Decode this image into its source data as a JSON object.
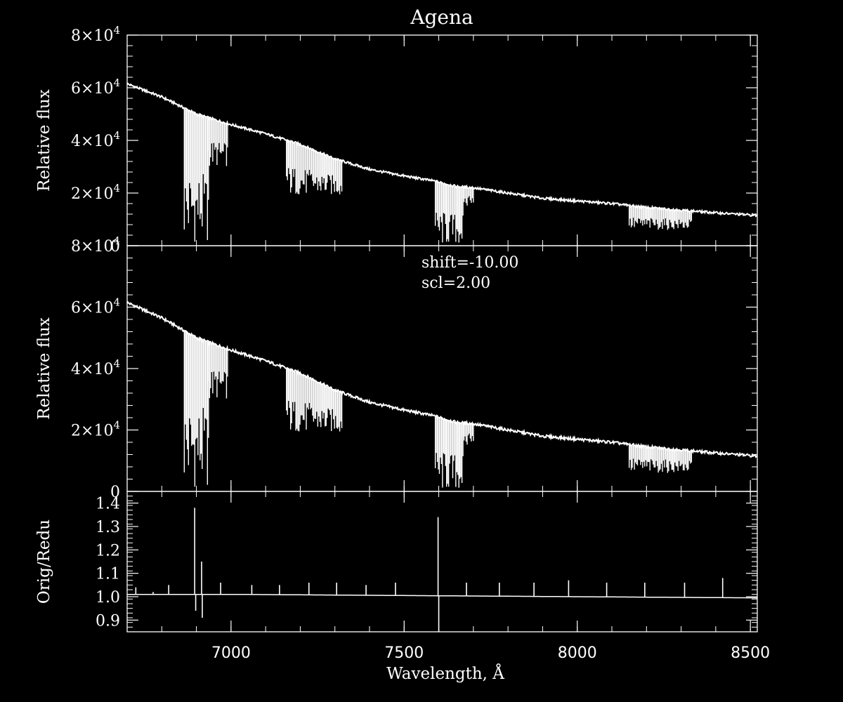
{
  "chart_data": {
    "type": "line",
    "title": "Agena",
    "xlabel": "Wavelength, Å",
    "xlim": [
      6700,
      8520
    ],
    "x_ticks": [
      7000,
      7500,
      8000,
      8500
    ],
    "x_tick_labels": [
      "7000",
      "7500",
      "8000",
      "8500"
    ],
    "colors": {
      "background": "#000000",
      "foreground": "#ffffff"
    },
    "panels": [
      {
        "id": "top",
        "ylabel": "Relative flux",
        "ylim": [
          0,
          80000
        ],
        "y_ticks": [
          0,
          20000,
          40000,
          60000,
          80000
        ],
        "y_tick_labels": [
          {
            "base": "0",
            "exp": ""
          },
          {
            "base": "2×10",
            "exp": "4"
          },
          {
            "base": "4×10",
            "exp": "4"
          },
          {
            "base": "6×10",
            "exp": "4"
          },
          {
            "base": "8×10",
            "exp": "4"
          }
        ],
        "continuum": {
          "x": [
            6700,
            6760,
            6800,
            6870,
            6900,
            7000,
            7100,
            7200,
            7300,
            7400,
            7500,
            7590,
            7650,
            7700,
            7800,
            7900,
            8000,
            8100,
            8200,
            8300,
            8400,
            8520
          ],
          "y": [
            61500,
            58500,
            56500,
            52000,
            50000,
            46000,
            42500,
            38500,
            33000,
            29000,
            26500,
            24500,
            22500,
            22000,
            20000,
            18000,
            17000,
            16000,
            14500,
            13500,
            12500,
            11500
          ]
        },
        "absorption_bands": [
          {
            "x0": 6865,
            "x1": 6935,
            "y_min": 1000
          },
          {
            "x0": 6935,
            "x1": 6990,
            "y_min": 30000
          },
          {
            "x0": 7160,
            "x1": 7320,
            "y_min": 19000
          },
          {
            "x0": 7590,
            "x1": 7670,
            "y_min": 0
          },
          {
            "x0": 7670,
            "x1": 7700,
            "y_min": 15000
          },
          {
            "x0": 8150,
            "x1": 8330,
            "y_min": 6000
          }
        ]
      },
      {
        "id": "middle",
        "ylabel": "Relative flux",
        "ylim": [
          0,
          80000
        ],
        "y_ticks": [
          0,
          20000,
          40000,
          60000,
          80000
        ],
        "y_tick_labels": [
          {
            "base": "0",
            "exp": ""
          },
          {
            "base": "2×10",
            "exp": "4"
          },
          {
            "base": "4×10",
            "exp": "4"
          },
          {
            "base": "6×10",
            "exp": "4"
          },
          {
            "base": "8×10",
            "exp": "4"
          }
        ],
        "annotations": [
          "shift=-10.00",
          "scl=2.00"
        ],
        "continuum": {
          "x": [
            6700,
            6760,
            6800,
            6870,
            6900,
            7000,
            7100,
            7200,
            7300,
            7400,
            7500,
            7590,
            7650,
            7700,
            7800,
            7900,
            8000,
            8100,
            8200,
            8300,
            8400,
            8520
          ],
          "y": [
            61500,
            58500,
            56500,
            52000,
            50000,
            46000,
            42500,
            38500,
            33000,
            29000,
            26500,
            24500,
            22500,
            22000,
            20000,
            18000,
            17000,
            16000,
            14500,
            13500,
            12500,
            11500
          ]
        },
        "absorption_bands": [
          {
            "x0": 6865,
            "x1": 6935,
            "y_min": 1000
          },
          {
            "x0": 6935,
            "x1": 6990,
            "y_min": 30000
          },
          {
            "x0": 7160,
            "x1": 7320,
            "y_min": 19000
          },
          {
            "x0": 7590,
            "x1": 7670,
            "y_min": 0
          },
          {
            "x0": 7670,
            "x1": 7700,
            "y_min": 15000
          },
          {
            "x0": 8150,
            "x1": 8330,
            "y_min": 6000
          }
        ]
      },
      {
        "id": "bottom",
        "ylabel": "Orig/Redu",
        "ylim": [
          0.85,
          1.45
        ],
        "y_ticks": [
          0.9,
          1.0,
          1.1,
          1.2,
          1.3,
          1.4
        ],
        "y_tick_labels": [
          {
            "base": "0.9",
            "exp": ""
          },
          {
            "base": "1.0",
            "exp": ""
          },
          {
            "base": "1.1",
            "exp": ""
          },
          {
            "base": "1.2",
            "exp": ""
          },
          {
            "base": "1.3",
            "exp": ""
          },
          {
            "base": "1.4",
            "exp": ""
          }
        ],
        "baseline": {
          "x": [
            6700,
            7000,
            7500,
            8000,
            8520
          ],
          "y": [
            1.01,
            1.01,
            1.005,
            1.0,
            0.995
          ]
        },
        "ratio_spikes": [
          {
            "x": 6725,
            "y": 1.04
          },
          {
            "x": 6775,
            "y": 1.02
          },
          {
            "x": 6820,
            "y": 1.05
          },
          {
            "x": 6895,
            "y": 1.38
          },
          {
            "x": 6898,
            "y": 0.94
          },
          {
            "x": 6915,
            "y": 1.15
          },
          {
            "x": 6917,
            "y": 0.91
          },
          {
            "x": 6970,
            "y": 1.06
          },
          {
            "x": 7060,
            "y": 1.05
          },
          {
            "x": 7140,
            "y": 1.05
          },
          {
            "x": 7225,
            "y": 1.06
          },
          {
            "x": 7305,
            "y": 1.06
          },
          {
            "x": 7390,
            "y": 1.05
          },
          {
            "x": 7475,
            "y": 1.06
          },
          {
            "x": 7598,
            "y": 1.34
          },
          {
            "x": 7600,
            "y": 0.85
          },
          {
            "x": 7680,
            "y": 1.06
          },
          {
            "x": 7775,
            "y": 1.06
          },
          {
            "x": 7875,
            "y": 1.06
          },
          {
            "x": 7975,
            "y": 1.07
          },
          {
            "x": 8085,
            "y": 1.06
          },
          {
            "x": 8195,
            "y": 1.06
          },
          {
            "x": 8310,
            "y": 1.06
          },
          {
            "x": 8420,
            "y": 1.08
          }
        ]
      }
    ]
  }
}
